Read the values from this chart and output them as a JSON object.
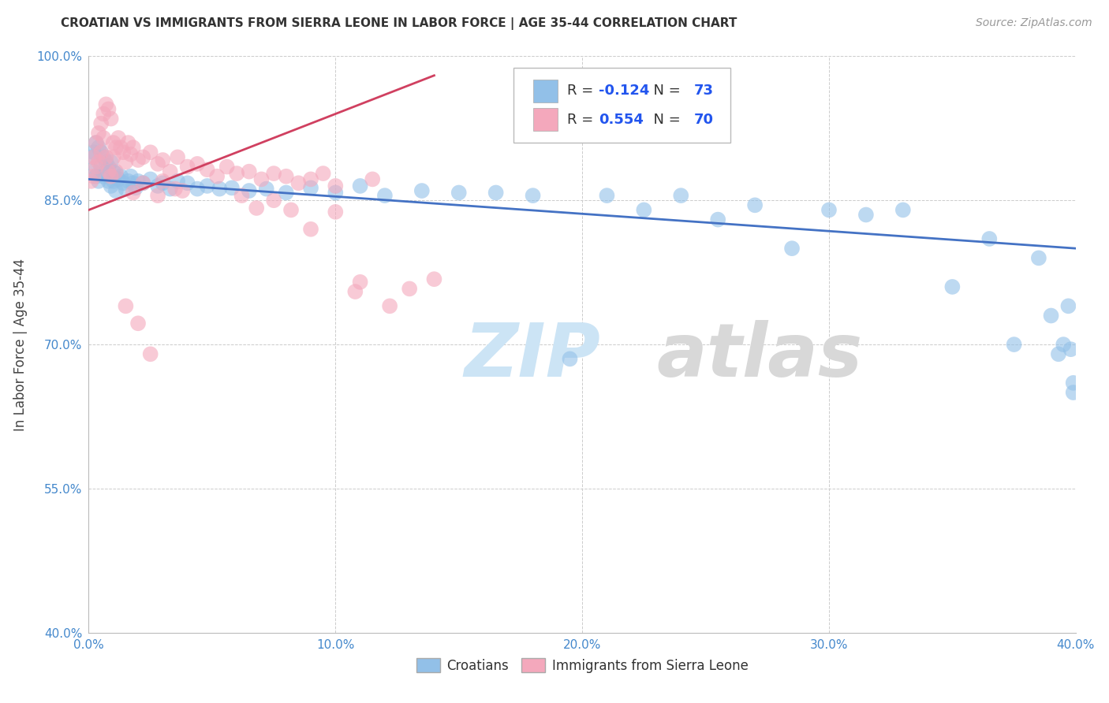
{
  "title": "CROATIAN VS IMMIGRANTS FROM SIERRA LEONE IN LABOR FORCE | AGE 35-44 CORRELATION CHART",
  "source": "Source: ZipAtlas.com",
  "ylabel": "In Labor Force | Age 35-44",
  "xlim": [
    0.0,
    0.4
  ],
  "ylim": [
    0.4,
    1.0
  ],
  "xticks": [
    0.0,
    0.1,
    0.2,
    0.3,
    0.4
  ],
  "xticklabels": [
    "0.0%",
    "10.0%",
    "20.0%",
    "30.0%",
    "40.0%"
  ],
  "yticks": [
    0.4,
    0.55,
    0.7,
    0.85,
    1.0
  ],
  "yticklabels": [
    "40.0%",
    "55.0%",
    "70.0%",
    "85.0%",
    "100.0%"
  ],
  "legend_labels": [
    "Croatians",
    "Immigrants from Sierra Leone"
  ],
  "r_croatian": -0.124,
  "n_croatian": 73,
  "r_sierraleone": 0.554,
  "n_sierraleone": 70,
  "blue_color": "#92c0e8",
  "pink_color": "#f4a8bc",
  "blue_line_color": "#4472c4",
  "pink_line_color": "#d04060",
  "background_color": "#ffffff",
  "grid_color": "#cccccc",
  "blue_x": [
    0.001,
    0.002,
    0.002,
    0.003,
    0.003,
    0.004,
    0.004,
    0.005,
    0.005,
    0.006,
    0.006,
    0.007,
    0.007,
    0.008,
    0.008,
    0.009,
    0.009,
    0.01,
    0.01,
    0.011,
    0.011,
    0.012,
    0.013,
    0.014,
    0.015,
    0.016,
    0.017,
    0.018,
    0.019,
    0.02,
    0.022,
    0.025,
    0.028,
    0.03,
    0.033,
    0.036,
    0.04,
    0.044,
    0.048,
    0.053,
    0.058,
    0.065,
    0.072,
    0.08,
    0.09,
    0.1,
    0.11,
    0.12,
    0.135,
    0.15,
    0.165,
    0.18,
    0.195,
    0.21,
    0.225,
    0.24,
    0.255,
    0.27,
    0.285,
    0.3,
    0.315,
    0.33,
    0.35,
    0.365,
    0.375,
    0.385,
    0.39,
    0.393,
    0.395,
    0.397,
    0.398,
    0.399,
    0.399
  ],
  "blue_y": [
    0.895,
    0.9,
    0.88,
    0.91,
    0.875,
    0.905,
    0.87,
    0.9,
    0.885,
    0.895,
    0.875,
    0.89,
    0.88,
    0.885,
    0.87,
    0.89,
    0.865,
    0.88,
    0.87,
    0.878,
    0.86,
    0.872,
    0.875,
    0.868,
    0.862,
    0.87,
    0.875,
    0.868,
    0.863,
    0.87,
    0.868,
    0.872,
    0.865,
    0.868,
    0.862,
    0.87,
    0.868,
    0.862,
    0.865,
    0.862,
    0.863,
    0.86,
    0.862,
    0.858,
    0.863,
    0.858,
    0.865,
    0.855,
    0.86,
    0.858,
    0.858,
    0.855,
    0.685,
    0.855,
    0.84,
    0.855,
    0.83,
    0.845,
    0.8,
    0.84,
    0.835,
    0.84,
    0.76,
    0.81,
    0.7,
    0.79,
    0.73,
    0.69,
    0.7,
    0.74,
    0.695,
    0.66,
    0.65
  ],
  "pink_x": [
    0.001,
    0.002,
    0.002,
    0.003,
    0.003,
    0.004,
    0.004,
    0.005,
    0.005,
    0.006,
    0.006,
    0.007,
    0.007,
    0.008,
    0.008,
    0.009,
    0.009,
    0.01,
    0.01,
    0.011,
    0.011,
    0.012,
    0.013,
    0.014,
    0.015,
    0.016,
    0.017,
    0.018,
    0.02,
    0.022,
    0.025,
    0.028,
    0.03,
    0.033,
    0.036,
    0.04,
    0.044,
    0.048,
    0.052,
    0.056,
    0.06,
    0.065,
    0.07,
    0.075,
    0.08,
    0.085,
    0.09,
    0.095,
    0.1,
    0.108,
    0.115,
    0.122,
    0.13,
    0.14,
    0.03,
    0.035,
    0.038,
    0.062,
    0.068,
    0.075,
    0.082,
    0.09,
    0.1,
    0.11,
    0.018,
    0.022,
    0.028,
    0.015,
    0.02,
    0.025
  ],
  "pink_y": [
    0.87,
    0.895,
    0.875,
    0.91,
    0.885,
    0.92,
    0.89,
    0.93,
    0.9,
    0.94,
    0.915,
    0.95,
    0.895,
    0.945,
    0.88,
    0.935,
    0.875,
    0.91,
    0.895,
    0.905,
    0.88,
    0.915,
    0.905,
    0.9,
    0.89,
    0.91,
    0.898,
    0.905,
    0.892,
    0.895,
    0.9,
    0.888,
    0.892,
    0.88,
    0.895,
    0.885,
    0.888,
    0.882,
    0.875,
    0.885,
    0.878,
    0.88,
    0.872,
    0.878,
    0.875,
    0.868,
    0.872,
    0.878,
    0.865,
    0.755,
    0.872,
    0.74,
    0.758,
    0.768,
    0.87,
    0.862,
    0.86,
    0.855,
    0.842,
    0.85,
    0.84,
    0.82,
    0.838,
    0.765,
    0.858,
    0.868,
    0.855,
    0.74,
    0.722,
    0.69
  ]
}
